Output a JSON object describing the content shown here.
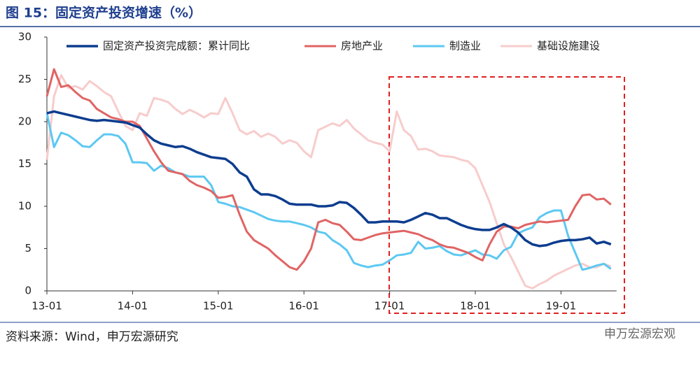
{
  "title": "图 15：固定资产投资增速（%）",
  "source": "资料来源：Wind，申万宏源研究",
  "watermark": "申万宏源宏观",
  "chart_data": {
    "type": "line",
    "categories": [
      "13-01",
      null,
      null,
      null,
      null,
      null,
      null,
      null,
      null,
      null,
      null,
      null,
      "14-01",
      null,
      null,
      null,
      null,
      null,
      null,
      null,
      null,
      null,
      null,
      null,
      "15-01",
      null,
      null,
      null,
      null,
      null,
      null,
      null,
      null,
      null,
      null,
      null,
      "16-01",
      null,
      null,
      null,
      null,
      null,
      null,
      null,
      null,
      null,
      null,
      null,
      "17-01",
      null,
      null,
      null,
      null,
      null,
      null,
      null,
      null,
      null,
      null,
      null,
      "18-01",
      null,
      null,
      null,
      null,
      null,
      null,
      null,
      null,
      null,
      null,
      null,
      "19-01",
      null,
      null,
      null,
      null,
      null,
      null,
      null
    ],
    "ylim": [
      0,
      30
    ],
    "yticks": [
      0,
      5,
      10,
      15,
      20,
      25,
      30
    ],
    "grid": false,
    "legend": "top",
    "series": [
      {
        "name": "固定资产投资完成额：累计同比",
        "color": "#0d3d8f",
        "width": 3.5,
        "values": [
          21,
          21.2,
          21,
          20.8,
          20.6,
          20.4,
          20.2,
          20.1,
          20.2,
          20.1,
          20,
          19.9,
          19.6,
          19.3,
          18.5,
          17.8,
          17.4,
          17.2,
          17,
          17.1,
          16.8,
          16.4,
          16.1,
          15.8,
          15.7,
          15.6,
          15,
          14,
          13.5,
          12,
          11.4,
          11.4,
          11.2,
          10.8,
          10.3,
          10.2,
          10.2,
          10.2,
          10,
          10,
          10.1,
          10.5,
          10.4,
          9.8,
          9,
          8.1,
          8.1,
          8.2,
          8.2,
          8.2,
          8.1,
          8.4,
          8.8,
          9.2,
          9,
          8.6,
          8.6,
          8.2,
          7.8,
          7.5,
          7.3,
          7.2,
          7.2,
          7.5,
          7.9,
          7.5,
          6.9,
          6,
          5.5,
          5.3,
          5.4,
          5.7,
          5.9,
          6,
          6,
          6.1,
          6.3,
          5.6,
          5.8,
          5.5
        ]
      },
      {
        "name": "房地产业",
        "color": "#e06464",
        "width": 3,
        "values": [
          23,
          26.2,
          24.1,
          24.3,
          23.5,
          22.8,
          22.5,
          21.5,
          21,
          20.5,
          20.3,
          20,
          20,
          19.5,
          18,
          16.5,
          15.2,
          14.2,
          14,
          13.8,
          13,
          12.5,
          12.2,
          11.8,
          11,
          11.1,
          11.3,
          9,
          7,
          6,
          5.5,
          5,
          4.2,
          3.5,
          2.8,
          2.5,
          3.5,
          5,
          8.1,
          8.4,
          8,
          7.8,
          7,
          6.1,
          6,
          6.3,
          6.6,
          6.8,
          6.9,
          7,
          7.1,
          6.9,
          6.7,
          6.3,
          6,
          5.5,
          5.2,
          5.1,
          4.8,
          4.5,
          4,
          3.6,
          5.5,
          7,
          7.6,
          7.6,
          7.4,
          7.8,
          8,
          8.2,
          8.1,
          8.2,
          8.3,
          8.4,
          10,
          11.3,
          11.4,
          10.8,
          10.9,
          10.2
        ]
      },
      {
        "name": "制造业",
        "color": "#5cc8f2",
        "width": 3,
        "values": [
          21,
          17,
          18.7,
          18.4,
          17.8,
          17.1,
          17,
          17.8,
          18.5,
          18.5,
          18.3,
          17.4,
          15.2,
          15.2,
          15.1,
          14.2,
          14.8,
          14.5,
          14,
          13.8,
          13.5,
          13.5,
          13.5,
          12.5,
          10.5,
          10.3,
          10,
          9.9,
          9.6,
          9.3,
          8.9,
          8.5,
          8.3,
          8.2,
          8.2,
          8,
          7.8,
          7.5,
          7,
          6.8,
          6,
          5.5,
          4.8,
          3.3,
          3,
          2.8,
          3,
          3.1,
          3.6,
          4.2,
          4.3,
          4.5,
          5.8,
          5,
          5.1,
          5.3,
          4.7,
          4.3,
          4.2,
          4.5,
          4.8,
          4.3,
          4.2,
          3.8,
          4.8,
          5.2,
          6.8,
          7.2,
          7.5,
          8.7,
          9.2,
          9.5,
          9.5,
          6.5,
          4.5,
          2.5,
          2.7,
          3,
          3.2,
          2.6
        ]
      },
      {
        "name": "基础设施建设",
        "color": "#f7cccc",
        "width": 3,
        "values": [
          15.5,
          23,
          25.5,
          24,
          24.2,
          23.8,
          24.8,
          24.2,
          23.5,
          23,
          21.2,
          19.5,
          19,
          21,
          20.7,
          22.8,
          22.6,
          22.3,
          21.5,
          20.9,
          21.4,
          21,
          20.5,
          21,
          20.9,
          22.8,
          21,
          19,
          18.5,
          18.9,
          18.2,
          18.6,
          18.2,
          17.4,
          17.8,
          17.5,
          16.5,
          15.8,
          19,
          19.4,
          19.8,
          19.5,
          20.2,
          19.2,
          18.5,
          17.8,
          17.5,
          17.3,
          16.5,
          21.2,
          19,
          18.3,
          16.7,
          16.8,
          16.5,
          16,
          15.9,
          15.8,
          15.5,
          15.3,
          14.5,
          12.5,
          10.5,
          8,
          5.5,
          4,
          2.3,
          0.6,
          0.3,
          0.8,
          1.2,
          1.8,
          2.2,
          2.6,
          3,
          3.2,
          2.8,
          2.8,
          3.2,
          2.9
        ]
      }
    ]
  }
}
